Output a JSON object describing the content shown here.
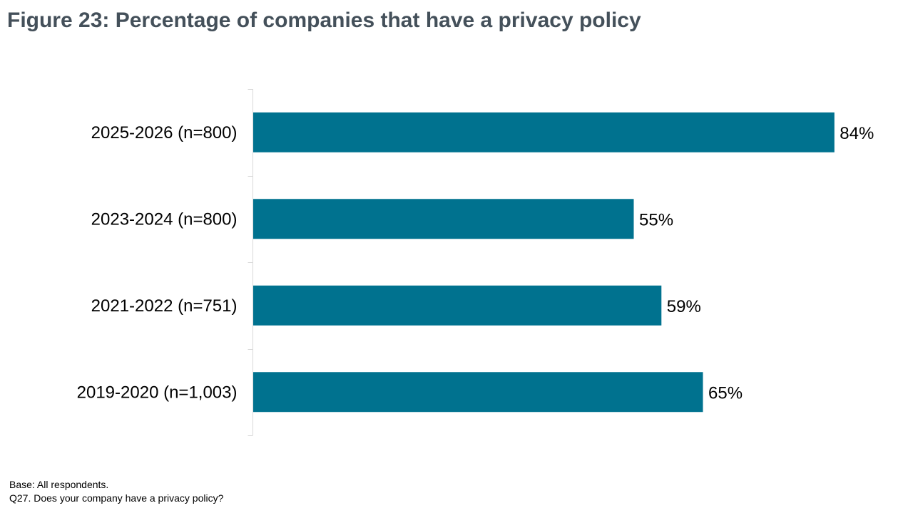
{
  "title": "Figure 23: Percentage of companies that have a privacy policy",
  "footnote": {
    "base": "Base: All respondents.",
    "question": "Q27. Does your company have a privacy policy?"
  },
  "chart_data": {
    "type": "bar",
    "orientation": "horizontal",
    "categories": [
      "2025-2026 (n=800)",
      "2023-2024 (n=800)",
      "2021-2022 (n=751)",
      "2019-2020 (n=1,003)"
    ],
    "values": [
      84,
      55,
      59,
      65
    ],
    "value_labels": [
      "84%",
      "55%",
      "59%",
      "65%"
    ],
    "xlim": [
      0,
      100
    ],
    "grid": false,
    "legend": "none",
    "bar_color": "#00728f"
  }
}
